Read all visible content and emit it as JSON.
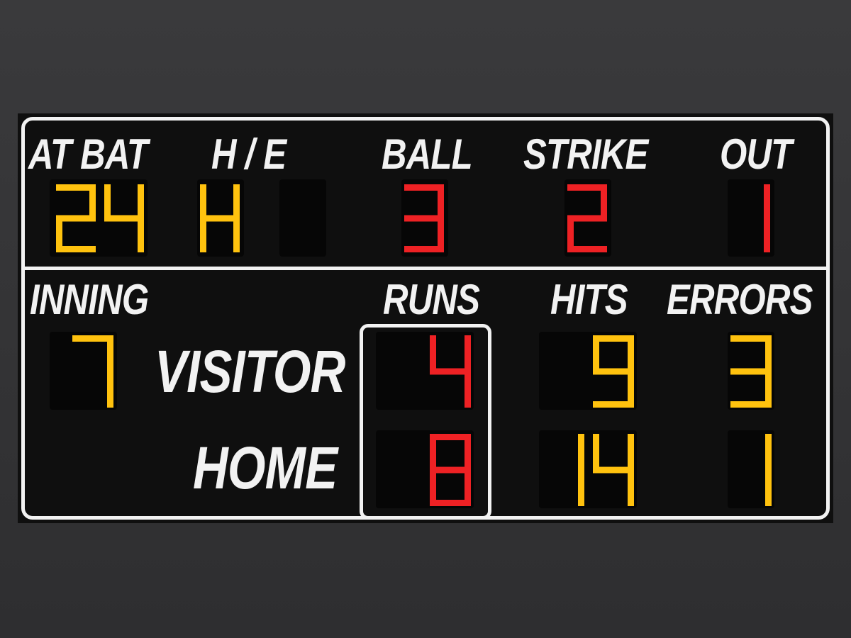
{
  "colors": {
    "amber": "#ffc20e",
    "red": "#ee2124",
    "label": "#f2f2f2",
    "panel": "#0f0f0f"
  },
  "top": {
    "at_bat": {
      "label": "AT BAT",
      "value": "24"
    },
    "h_e": {
      "label": "H / E",
      "value_h": "H",
      "value_e": ""
    },
    "ball": {
      "label": "BALL",
      "value": "3"
    },
    "strike": {
      "label": "STRIKE",
      "value": "2"
    },
    "out": {
      "label": "OUT",
      "value": "1"
    }
  },
  "bottom": {
    "inning": {
      "label": "INNING",
      "value": "7"
    },
    "columns": {
      "runs": "RUNS",
      "hits": "HITS",
      "errors": "ERRORS"
    },
    "teams": [
      {
        "name": "VISITOR",
        "runs": "4",
        "hits": "9",
        "errors": "3"
      },
      {
        "name": "HOME",
        "runs": "8",
        "hits": "14",
        "errors": "1"
      }
    ]
  }
}
